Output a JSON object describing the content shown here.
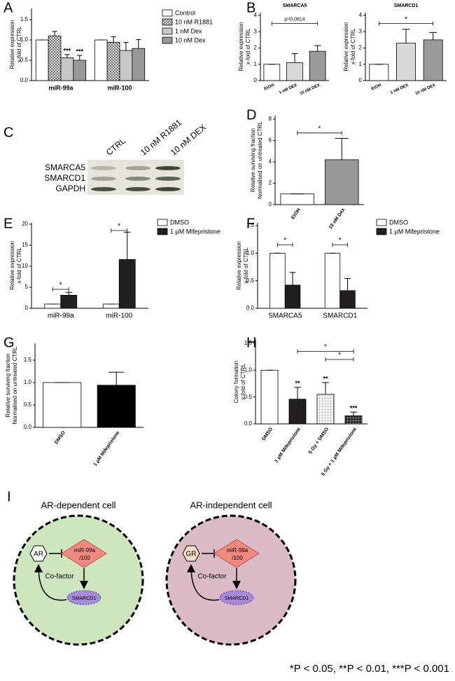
{
  "chart_data": [
    {
      "panel": "A",
      "type": "bar",
      "ylabel": [
        "Relative expression",
        "x-fold of CTRL"
      ],
      "categories": [
        "miR-99a",
        "miR-100"
      ],
      "series": [
        {
          "name": "Control",
          "color": "#ffffff",
          "values": [
            1.0,
            1.0
          ],
          "errors": [
            0,
            0
          ]
        },
        {
          "name": "10 nM R1881",
          "color": "#ffffff",
          "pattern": "crosshatch",
          "values": [
            1.1,
            0.94
          ],
          "errors": [
            0.11,
            0.14
          ]
        },
        {
          "name": "1 nM Dex",
          "color": "#c8c8c8",
          "values": [
            0.56,
            0.74
          ],
          "errors": [
            0.08,
            0.2
          ]
        },
        {
          "name": "10 nM Dex",
          "color": "#999999",
          "values": [
            0.5,
            0.79
          ],
          "errors": [
            0.12,
            0.22
          ]
        }
      ],
      "ylim": [
        0,
        1.5
      ],
      "yticks": [
        {
          "value": 0,
          "label": "0.0"
        },
        {
          "value": 0.5,
          "label": "0.5"
        },
        {
          "value": 1,
          "label": "1.0"
        },
        {
          "value": 1.5,
          "label": "1.5"
        }
      ],
      "legend": "outside-right",
      "annotations": [
        {
          "text": "***",
          "series": 2,
          "category": 0
        },
        {
          "text": "***",
          "series": 3,
          "category": 0
        }
      ]
    },
    {
      "panel": "B",
      "type": "bar",
      "title": "SMARCA5",
      "ylabel": [
        "Relative expression",
        "x-fold of CTRL"
      ],
      "categories": [
        "EtOH",
        "1 nM DEX",
        "10 nM DEX"
      ],
      "values": [
        1.0,
        1.1,
        1.8
      ],
      "errors": [
        0,
        0.55,
        0.35
      ],
      "colors": [
        "#ffffff",
        "#d9d9d9",
        "#9a9a9a"
      ],
      "xtick_rotation": 25,
      "ylim": [
        0,
        4
      ],
      "yticks": [
        0,
        1,
        2,
        3,
        4
      ],
      "annotations": [
        {
          "text": "p=0,0814",
          "from": 0,
          "to": 2,
          "y": 3.5
        }
      ]
    },
    {
      "type": "bar",
      "title": "SMARCD1",
      "ylabel": [
        "Relative expression",
        "x-fold of CTRL"
      ],
      "categories": [
        "EtOH",
        "1 nM DEX",
        "10 nM DEX"
      ],
      "values": [
        1.0,
        2.3,
        2.5
      ],
      "errors": [
        0,
        0.85,
        0.45
      ],
      "colors": [
        "#ffffff",
        "#d9d9d9",
        "#9a9a9a"
      ],
      "xtick_rotation": 25,
      "ylim": [
        0,
        4
      ],
      "yticks": [
        0,
        1,
        2,
        3,
        4
      ],
      "annotations": [
        {
          "text": "*",
          "from": 0,
          "to": 2,
          "y": 3.5
        }
      ]
    },
    {
      "panel": "D",
      "type": "bar",
      "ylabel": [
        "Relative surviving fraction",
        "Normalised on untreated CTRL"
      ],
      "categories": [
        "EtOH",
        "10 nM Dex"
      ],
      "values": [
        1.0,
        4.2
      ],
      "errors": [
        0,
        2.0
      ],
      "colors": [
        "#ffffff",
        "#999999"
      ],
      "xtick_rotation": 55,
      "ylim": [
        0,
        8
      ],
      "yticks": [
        0,
        2,
        4,
        6,
        8
      ],
      "annotations": [
        {
          "text": "*",
          "from": 0,
          "to": 1,
          "y": 6.7
        }
      ]
    },
    {
      "panel": "E",
      "type": "bar",
      "ylabel": [
        "Relative expression",
        "x-fold of CTRL"
      ],
      "categories": [
        "miR-99a",
        "miR-100"
      ],
      "series": [
        {
          "name": "DMSO",
          "color": "#ffffff",
          "values": [
            1.0,
            1.0
          ],
          "errors": [
            0,
            0
          ]
        },
        {
          "name": "1 µM Mifepristone",
          "color": "#231f20",
          "values": [
            3.1,
            11.6
          ],
          "errors": [
            0.7,
            6.5
          ]
        }
      ],
      "ylim": [
        0,
        20
      ],
      "yticks": [
        0,
        5,
        10,
        15,
        20
      ],
      "legend": "upper-right",
      "annotations": [
        {
          "text": "*",
          "category": 0,
          "y": 4.5
        },
        {
          "text": "*",
          "category": 1,
          "y": 18.5
        }
      ]
    },
    {
      "panel": "F",
      "type": "bar",
      "ylabel": [
        "Relative expression",
        "x-fold of CTRL"
      ],
      "categories": [
        "SMARCA5",
        "SMARCD1"
      ],
      "series": [
        {
          "name": "DMSO",
          "color": "#ffffff",
          "values": [
            1.0,
            1.0
          ],
          "errors": [
            0,
            0
          ]
        },
        {
          "name": "1 µM Mifepristone",
          "color": "#231f20",
          "values": [
            0.42,
            0.32
          ],
          "errors": [
            0.23,
            0.22
          ]
        }
      ],
      "ylim": [
        0,
        1.5
      ],
      "yticks": [
        {
          "value": 0,
          "label": "0.0"
        },
        {
          "value": 0.5,
          "label": "0.5"
        },
        {
          "value": 1,
          "label": "1.0"
        },
        {
          "value": 1.5,
          "label": "1.5"
        }
      ],
      "legend": "upper-right",
      "annotations": [
        {
          "text": "*",
          "category": 0,
          "y": 1.15
        },
        {
          "text": "*",
          "category": 1,
          "y": 1.15
        }
      ]
    },
    {
      "panel": "G",
      "type": "bar",
      "ylabel": [
        "Relative surviving fraction",
        "Normalised on untreated CTRL"
      ],
      "categories": [
        "DMSO",
        "1 µM Mifepristone"
      ],
      "values": [
        1.0,
        0.94
      ],
      "errors": [
        0,
        0.29
      ],
      "colors": [
        "#ffffff",
        "#000000"
      ],
      "xtick_rotation": 55,
      "ylim": [
        0,
        1.5
      ],
      "yticks": [
        {
          "value": 0,
          "label": "0.0"
        },
        {
          "value": 0.5,
          "label": "0.5"
        },
        {
          "value": 1,
          "label": "1.0"
        },
        {
          "value": 1.5,
          "label": "1.5"
        }
      ]
    },
    {
      "panel": "H",
      "type": "bar",
      "ylabel": [
        "Colony formation",
        "x-fold of CTRL"
      ],
      "categories": [
        "DMSO",
        "1 µM Mifepristone",
        "5 Gy + DMSO",
        "5 Gy + 1 µM Mifepristone"
      ],
      "values": [
        1.0,
        0.46,
        0.55,
        0.15
      ],
      "errors": [
        0,
        0.22,
        0.22,
        0.07
      ],
      "colors": [
        "#ffffff",
        "#231f20",
        "#ffffff",
        "#231f20"
      ],
      "patterns": [
        "none",
        "none",
        "grid",
        "grid"
      ],
      "xtick_rotation": 55,
      "ylim": [
        0,
        1.5
      ],
      "yticks": [
        {
          "value": 0,
          "label": "0.0"
        },
        {
          "value": 0.5,
          "label": "0.5"
        },
        {
          "value": 1,
          "label": "1.0"
        },
        {
          "value": 1.5,
          "label": "1.5"
        }
      ],
      "annotations": [
        {
          "text": "**",
          "bar": 1
        },
        {
          "text": "**",
          "bar": 2
        },
        {
          "text": "***",
          "bar": 3
        },
        {
          "text": "*",
          "from": 1,
          "to": 3,
          "y": 1.35
        },
        {
          "text": "*",
          "from": 2,
          "to": 3,
          "y": 1.2
        }
      ]
    }
  ],
  "blot": {
    "panel": "C",
    "lanes": [
      "CTRL",
      "10 nM R1881",
      "10 nM DEX"
    ],
    "bands": [
      "SMARCA5",
      "SMARCD1",
      "GAPDH"
    ]
  },
  "diagram": {
    "panel": "I",
    "cells": [
      {
        "title": "AR-dependent cell",
        "receptor": "AR",
        "mirna": [
          "miR-99a",
          "/100"
        ],
        "target": "SMARCD1",
        "link": "Co-factor"
      },
      {
        "title": "AR-independent cell",
        "receptor": "GR",
        "mirna": [
          "miR-99a",
          "/100"
        ],
        "target": "SMARCD1",
        "link": "Co-factor"
      }
    ]
  },
  "footnote": "*P < 0.05, **P < 0.01, ***P < 0.001"
}
